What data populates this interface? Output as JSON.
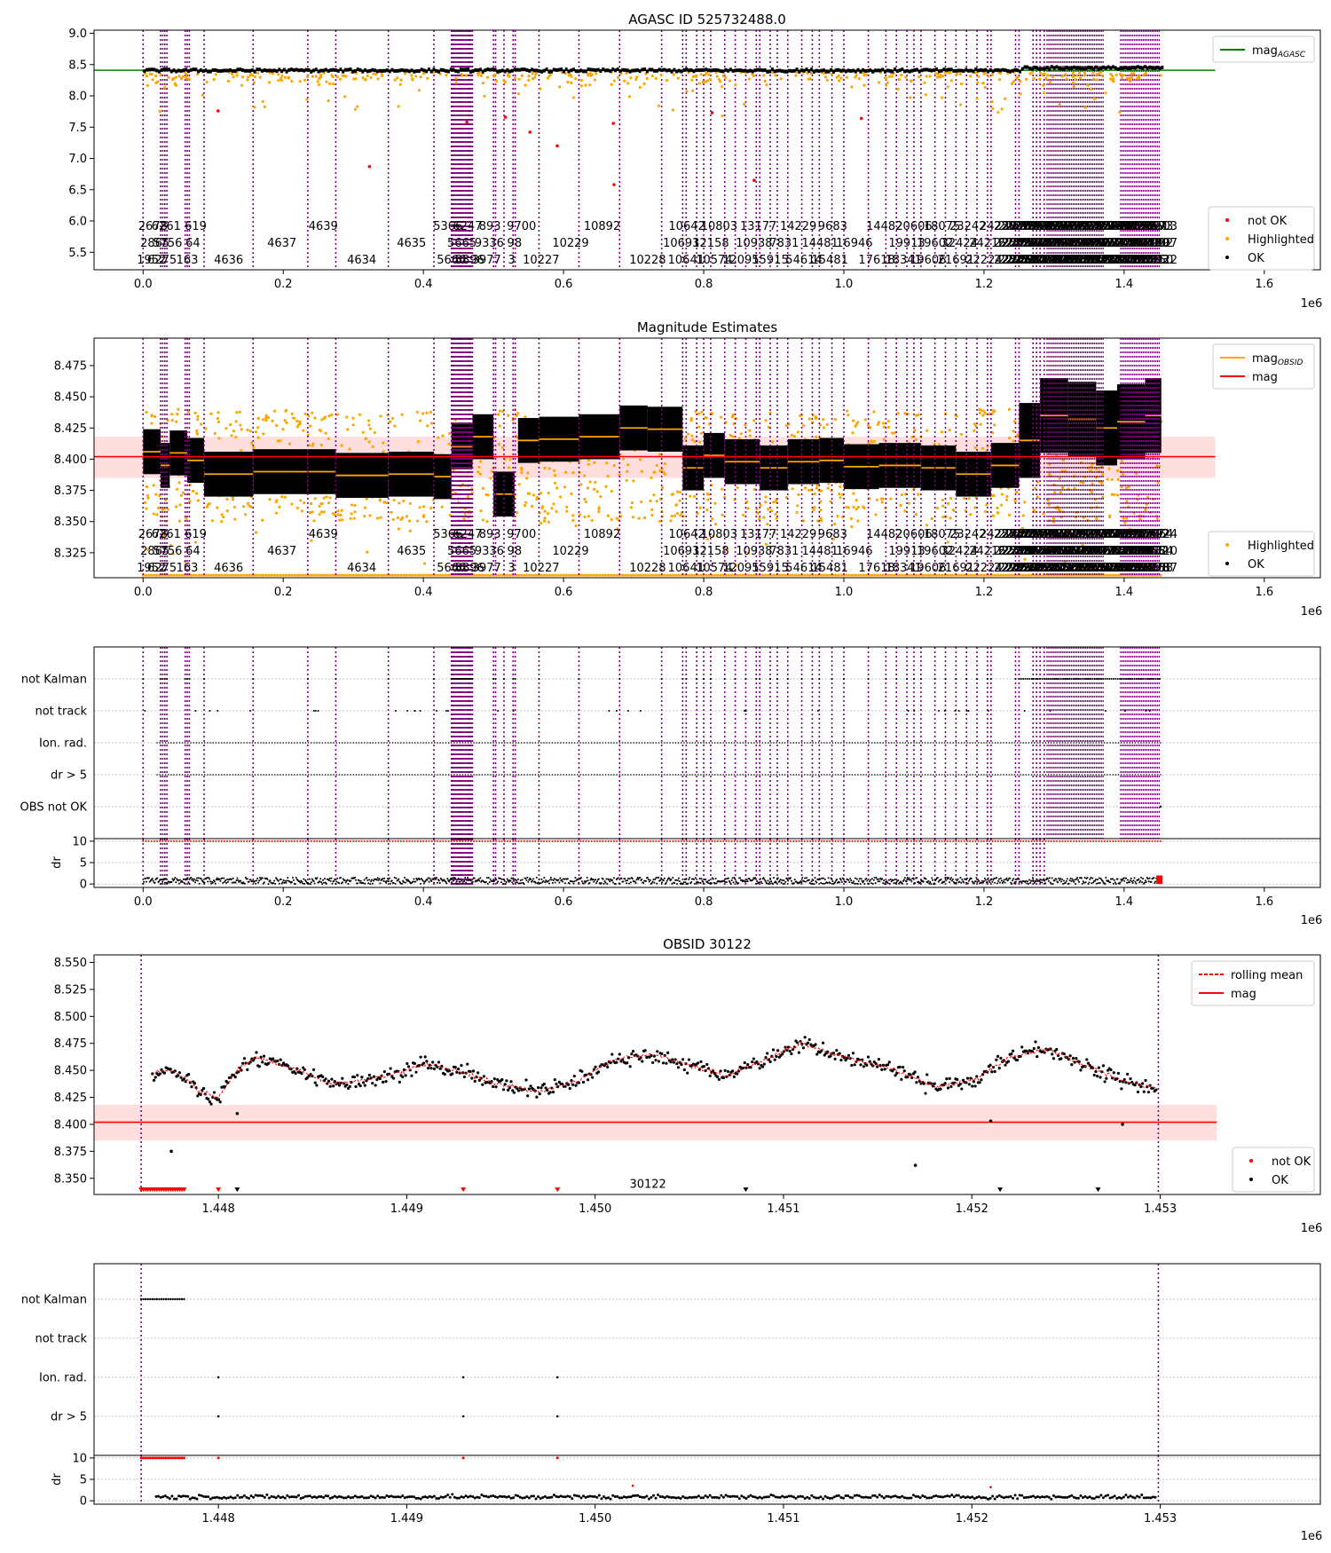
{
  "figure": {
    "multiplier": "1e6"
  },
  "chart_data": [
    {
      "type": "scatter",
      "title": "AGASC ID 525732488.0",
      "xlim": [
        -0.07,
        1.68
      ],
      "ylim": [
        5.22,
        9.05
      ],
      "xticks": [
        0.0,
        0.2,
        0.4,
        0.6,
        0.8,
        1.0,
        1.2,
        1.4,
        1.6
      ],
      "xticklabels": [
        "0.0",
        "0.2",
        "0.4",
        "0.6",
        "0.8",
        "1.0",
        "1.2",
        "1.4",
        "1.6"
      ],
      "yticks": [
        5.5,
        6.0,
        6.5,
        7.0,
        7.5,
        8.0,
        8.5,
        9.0
      ],
      "yticklabels": [
        "5.5",
        "6.0",
        "6.5",
        "7.0",
        "7.5",
        "8.0",
        "8.5",
        "9.0"
      ],
      "mag_agasc": 8.41,
      "legend_top": [
        {
          "label": "mag",
          "sub": "AGASC",
          "color": "#008000",
          "kind": "line"
        }
      ],
      "legend_bottom": [
        {
          "label": "not OK",
          "color": "#ff0000",
          "kind": "dot"
        },
        {
          "label": "Highlighted",
          "color": "#ffa500",
          "kind": "dot"
        },
        {
          "label": "OK",
          "color": "#000000",
          "kind": "dot"
        }
      ],
      "red_points": [
        [
          0.107,
          7.76
        ],
        [
          0.323,
          6.87
        ],
        [
          0.462,
          7.58
        ],
        [
          0.517,
          7.66
        ],
        [
          0.552,
          7.42
        ],
        [
          0.591,
          7.2
        ],
        [
          0.671,
          7.56
        ],
        [
          0.672,
          6.58
        ],
        [
          0.812,
          7.73
        ],
        [
          0.872,
          6.65
        ],
        [
          1.025,
          7.64
        ]
      ]
    },
    {
      "type": "scatter",
      "title": "Magnitude Estimates",
      "xlim": [
        -0.07,
        1.68
      ],
      "ylim": [
        8.305,
        8.497
      ],
      "xticks": [
        0.0,
        0.2,
        0.4,
        0.6,
        0.8,
        1.0,
        1.2,
        1.4,
        1.6
      ],
      "xticklabels": [
        "0.0",
        "0.2",
        "0.4",
        "0.6",
        "0.8",
        "1.0",
        "1.2",
        "1.4",
        "1.6"
      ],
      "yticks": [
        8.325,
        8.35,
        8.375,
        8.4,
        8.425,
        8.45,
        8.475
      ],
      "yticklabels": [
        "8.325",
        "8.350",
        "8.375",
        "8.400",
        "8.425",
        "8.450",
        "8.475"
      ],
      "mag": 8.402,
      "mag_band": [
        8.385,
        8.418
      ],
      "legend_top": [
        {
          "label": "mag",
          "sub": "OBSID",
          "color": "#ffa500",
          "kind": "line"
        },
        {
          "label": "mag",
          "sub": "",
          "color": "#ff0000",
          "kind": "line"
        }
      ],
      "legend_bottom": [
        {
          "label": "Highlighted",
          "color": "#ffa500",
          "kind": "dot"
        },
        {
          "label": "OK",
          "color": "#000000",
          "kind": "dot"
        }
      ],
      "segments": [
        {
          "x": [
            0.0,
            0.025
          ],
          "mean": 8.406
        },
        {
          "x": [
            0.025,
            0.038
          ],
          "mean": 8.395
        },
        {
          "x": [
            0.038,
            0.063
          ],
          "mean": 8.405
        },
        {
          "x": [
            0.063,
            0.087
          ],
          "mean": 8.399
        },
        {
          "x": [
            0.087,
            0.157
          ],
          "mean": 8.388
        },
        {
          "x": [
            0.157,
            0.235
          ],
          "mean": 8.39
        },
        {
          "x": [
            0.235,
            0.275
          ],
          "mean": 8.39
        },
        {
          "x": [
            0.275,
            0.35
          ],
          "mean": 8.387
        },
        {
          "x": [
            0.35,
            0.415
          ],
          "mean": 8.388
        },
        {
          "x": [
            0.415,
            0.44
          ],
          "mean": 8.386
        },
        {
          "x": [
            0.44,
            0.47
          ],
          "mean": 8.41
        },
        {
          "x": [
            0.47,
            0.5
          ],
          "mean": 8.418
        },
        {
          "x": [
            0.5,
            0.53
          ],
          "mean": 8.372
        },
        {
          "x": [
            0.535,
            0.565
          ],
          "mean": 8.415
        },
        {
          "x": [
            0.565,
            0.622
          ],
          "mean": 8.416
        },
        {
          "x": [
            0.622,
            0.68
          ],
          "mean": 8.418
        },
        {
          "x": [
            0.68,
            0.72
          ],
          "mean": 8.425
        },
        {
          "x": [
            0.72,
            0.77
          ],
          "mean": 8.424
        },
        {
          "x": [
            0.77,
            0.8
          ],
          "mean": 8.393
        },
        {
          "x": [
            0.8,
            0.83
          ],
          "mean": 8.403
        },
        {
          "x": [
            0.83,
            0.88
          ],
          "mean": 8.398
        },
        {
          "x": [
            0.88,
            0.92
          ],
          "mean": 8.393
        },
        {
          "x": [
            0.92,
            0.965
          ],
          "mean": 8.398
        },
        {
          "x": [
            0.965,
            1.0
          ],
          "mean": 8.399
        },
        {
          "x": [
            1.0,
            1.05
          ],
          "mean": 8.394
        },
        {
          "x": [
            1.05,
            1.11
          ],
          "mean": 8.395
        },
        {
          "x": [
            1.11,
            1.16
          ],
          "mean": 8.393
        },
        {
          "x": [
            1.16,
            1.21
          ],
          "mean": 8.388
        },
        {
          "x": [
            1.21,
            1.25
          ],
          "mean": 8.395
        },
        {
          "x": [
            1.25,
            1.28
          ],
          "mean": 8.415
        },
        {
          "x": [
            1.28,
            1.32
          ],
          "mean": 8.435
        },
        {
          "x": [
            1.32,
            1.36
          ],
          "mean": 8.432
        },
        {
          "x": [
            1.36,
            1.39
          ],
          "mean": 8.425
        },
        {
          "x": [
            1.39,
            1.43
          ],
          "mean": 8.43
        },
        {
          "x": [
            1.43,
            1.453
          ],
          "mean": 8.435
        }
      ]
    },
    {
      "type": "scatter",
      "title": "",
      "xlim": [
        -0.07,
        1.68
      ],
      "xticks": [
        0.0,
        0.2,
        0.4,
        0.6,
        0.8,
        1.0,
        1.2,
        1.4,
        1.6
      ],
      "xticklabels": [
        "0.0",
        "0.2",
        "0.4",
        "0.6",
        "0.8",
        "1.0",
        "1.2",
        "1.4",
        "1.6"
      ],
      "flag_labels": [
        "not Kalman",
        "not track",
        "Ion. rad.",
        "dr > 5",
        "OBS not OK"
      ],
      "dr_ylabel": "dr",
      "dr_yticks": [
        0,
        5,
        10
      ],
      "dr_yticklabels": [
        "0",
        "5",
        "10"
      ],
      "dr_ylim": [
        -0.8,
        10.6
      ]
    },
    {
      "type": "scatter",
      "title": "OBSID 30122",
      "xlim": [
        1.44734,
        1.45385
      ],
      "ylim": [
        8.335,
        8.557
      ],
      "xticks": [
        1.448,
        1.449,
        1.45,
        1.451,
        1.452,
        1.453
      ],
      "xticklabels": [
        "1.448",
        "1.449",
        "1.450",
        "1.451",
        "1.452",
        "1.453"
      ],
      "yticks": [
        8.35,
        8.375,
        8.4,
        8.425,
        8.45,
        8.475,
        8.5,
        8.525,
        8.55
      ],
      "yticklabels": [
        "8.350",
        "8.375",
        "8.400",
        "8.425",
        "8.450",
        "8.475",
        "8.500",
        "8.525",
        "8.550"
      ],
      "obsid_start": 1.44759,
      "obsid_end": 1.45299,
      "data_end": 1.45298,
      "mag": 8.402,
      "mag_band": [
        8.385,
        8.418
      ],
      "obsid_label": "30122",
      "legend_top": [
        {
          "label": "rolling mean",
          "color": "#ff0000",
          "kind": "dashed"
        },
        {
          "label": "mag",
          "color": "#ff0000",
          "kind": "line"
        }
      ],
      "legend_bottom": [
        {
          "label": "not OK",
          "color": "#ff0000",
          "kind": "dot"
        },
        {
          "label": "OK",
          "color": "#000000",
          "kind": "dot"
        }
      ],
      "trend": [
        [
          1.44765,
          8.447
        ],
        [
          1.44775,
          8.45
        ],
        [
          1.44785,
          8.44
        ],
        [
          1.4479,
          8.43
        ],
        [
          1.448,
          8.425
        ],
        [
          1.4481,
          8.45
        ],
        [
          1.4482,
          8.462
        ],
        [
          1.4484,
          8.452
        ],
        [
          1.4486,
          8.437
        ],
        [
          1.4489,
          8.445
        ],
        [
          1.4491,
          8.456
        ],
        [
          1.4493,
          8.448
        ],
        [
          1.4495,
          8.437
        ],
        [
          1.4497,
          8.43
        ],
        [
          1.4499,
          8.44
        ],
        [
          1.4501,
          8.46
        ],
        [
          1.4503,
          8.465
        ],
        [
          1.4505,
          8.455
        ],
        [
          1.4507,
          8.445
        ],
        [
          1.4509,
          8.46
        ],
        [
          1.4511,
          8.475
        ],
        [
          1.4513,
          8.463
        ],
        [
          1.4516,
          8.45
        ],
        [
          1.4518,
          8.435
        ],
        [
          1.452,
          8.44
        ],
        [
          1.4522,
          8.462
        ],
        [
          1.4524,
          8.47
        ],
        [
          1.4526,
          8.455
        ],
        [
          1.4528,
          8.44
        ],
        [
          1.453,
          8.433
        ]
      ],
      "outliers": [
        [
          1.44775,
          8.375
        ],
        [
          1.4481,
          8.41
        ],
        [
          1.4517,
          8.362
        ],
        [
          1.4521,
          8.403
        ],
        [
          1.4528,
          8.4
        ]
      ],
      "markers_red": [
        1.448,
        1.4493,
        1.4498
      ],
      "markers_black": [
        1.4481,
        1.4508,
        1.45215,
        1.45267
      ]
    },
    {
      "type": "scatter",
      "title": "",
      "xlim": [
        1.44734,
        1.45385
      ],
      "xticks": [
        1.448,
        1.449,
        1.45,
        1.451,
        1.452,
        1.453
      ],
      "xticklabels": [
        "1.448",
        "1.449",
        "1.450",
        "1.451",
        "1.452",
        "1.453"
      ],
      "flag_labels": [
        "not Kalman",
        "not track",
        "Ion. rad.",
        "dr > 5"
      ],
      "dr_ylabel": "dr",
      "dr_yticks": [
        0,
        5,
        10
      ],
      "dr_yticklabels": [
        "0",
        "5",
        "10"
      ],
      "dr_ylim": [
        -0.8,
        10.6
      ],
      "ion_points": [
        1.448,
        1.4493,
        1.4498
      ],
      "not_kalman_x": [
        1.44759,
        1.44782
      ],
      "red_dr_points": [
        1.448,
        1.4493,
        1.4498
      ]
    }
  ],
  "obsid_boundaries": [
    0.0,
    0.025,
    0.028,
    0.031,
    0.034,
    0.06,
    0.063,
    0.066,
    0.087,
    0.157,
    0.235,
    0.275,
    0.35,
    0.415,
    0.44,
    0.442,
    0.444,
    0.446,
    0.448,
    0.45,
    0.452,
    0.454,
    0.456,
    0.458,
    0.46,
    0.462,
    0.464,
    0.466,
    0.468,
    0.47,
    0.5,
    0.503,
    0.515,
    0.528,
    0.531,
    0.565,
    0.622,
    0.68,
    0.74,
    0.77,
    0.775,
    0.79,
    0.8,
    0.81,
    0.83,
    0.845,
    0.86,
    0.875,
    0.88,
    0.895,
    0.905,
    0.92,
    0.94,
    0.955,
    0.965,
    0.983,
    1.0,
    1.035,
    1.06,
    1.075,
    1.09,
    1.1,
    1.11,
    1.13,
    1.145,
    1.16,
    1.175,
    1.19,
    1.205,
    1.21,
    1.245,
    1.25,
    1.27,
    1.275,
    1.28,
    1.286
  ],
  "obsid_labels": [
    {
      "text": "2678",
      "x": 0.014,
      "row": 0
    },
    {
      "text": "6261",
      "x": 0.033,
      "row": 0
    },
    {
      "text": "619",
      "x": 0.075,
      "row": 0
    },
    {
      "text": "4639",
      "x": 0.257,
      "row": 0
    },
    {
      "text": "5366",
      "x": 0.435,
      "row": 0
    },
    {
      "text": "6247",
      "x": 0.463,
      "row": 0
    },
    {
      "text": "893",
      "x": 0.495,
      "row": 0
    },
    {
      "text": "9700",
      "x": 0.54,
      "row": 0
    },
    {
      "text": "10892",
      "x": 0.655,
      "row": 0
    },
    {
      "text": "10642",
      "x": 0.776,
      "row": 0
    },
    {
      "text": "10803",
      "x": 0.822,
      "row": 0
    },
    {
      "text": "13177",
      "x": 0.878,
      "row": 0
    },
    {
      "text": "14229",
      "x": 0.935,
      "row": 0
    },
    {
      "text": "9683",
      "x": 0.984,
      "row": 0
    },
    {
      "text": "14482",
      "x": 1.058,
      "row": 0
    },
    {
      "text": "20606",
      "x": 1.1,
      "row": 0
    },
    {
      "text": "18075",
      "x": 1.14,
      "row": 0
    },
    {
      "text": "23242",
      "x": 1.177,
      "row": 0
    },
    {
      "text": "24258",
      "x": 1.22,
      "row": 0
    },
    {
      "text": "2865",
      "x": 0.017,
      "row": 1
    },
    {
      "text": "5756",
      "x": 0.035,
      "row": 1
    },
    {
      "text": "64",
      "x": 0.071,
      "row": 1
    },
    {
      "text": "4637",
      "x": 0.198,
      "row": 1
    },
    {
      "text": "4635",
      "x": 0.383,
      "row": 1
    },
    {
      "text": "5665",
      "x": 0.455,
      "row": 1
    },
    {
      "text": "9336",
      "x": 0.494,
      "row": 1
    },
    {
      "text": "98",
      "x": 0.53,
      "row": 1
    },
    {
      "text": "10229",
      "x": 0.61,
      "row": 1
    },
    {
      "text": "10693",
      "x": 0.768,
      "row": 1
    },
    {
      "text": "12158",
      "x": 0.81,
      "row": 1
    },
    {
      "text": "10938",
      "x": 0.872,
      "row": 1
    },
    {
      "text": "7831",
      "x": 0.915,
      "row": 1
    },
    {
      "text": "14481",
      "x": 0.966,
      "row": 1
    },
    {
      "text": "16946",
      "x": 1.015,
      "row": 1
    },
    {
      "text": "19913",
      "x": 1.09,
      "row": 1
    },
    {
      "text": "19602",
      "x": 1.13,
      "row": 1
    },
    {
      "text": "32424",
      "x": 1.165,
      "row": 1
    },
    {
      "text": "24216",
      "x": 1.205,
      "row": 1
    },
    {
      "text": "1952",
      "x": 0.012,
      "row": 2
    },
    {
      "text": "6275",
      "x": 0.027,
      "row": 2
    },
    {
      "text": "163",
      "x": 0.063,
      "row": 2
    },
    {
      "text": "4636",
      "x": 0.122,
      "row": 2
    },
    {
      "text": "4634",
      "x": 0.312,
      "row": 2
    },
    {
      "text": "5666",
      "x": 0.44,
      "row": 2
    },
    {
      "text": "8896",
      "x": 0.466,
      "row": 2
    },
    {
      "text": "3977",
      "x": 0.49,
      "row": 2
    },
    {
      "text": "3",
      "x": 0.526,
      "row": 2
    },
    {
      "text": "10227",
      "x": 0.568,
      "row": 2
    },
    {
      "text": "10228",
      "x": 0.72,
      "row": 2
    },
    {
      "text": "10641",
      "x": 0.775,
      "row": 2
    },
    {
      "text": "10574",
      "x": 0.815,
      "row": 2
    },
    {
      "text": "12095",
      "x": 0.853,
      "row": 2
    },
    {
      "text": "15915",
      "x": 0.895,
      "row": 2
    },
    {
      "text": "54614",
      "x": 0.943,
      "row": 2
    },
    {
      "text": "15481",
      "x": 0.98,
      "row": 2
    },
    {
      "text": "17618",
      "x": 1.047,
      "row": 2
    },
    {
      "text": "18341",
      "x": 1.085,
      "row": 2
    },
    {
      "text": "19606",
      "x": 1.12,
      "row": 2
    },
    {
      "text": "21691",
      "x": 1.16,
      "row": 2
    },
    {
      "text": "22224",
      "x": 1.2,
      "row": 2
    }
  ]
}
